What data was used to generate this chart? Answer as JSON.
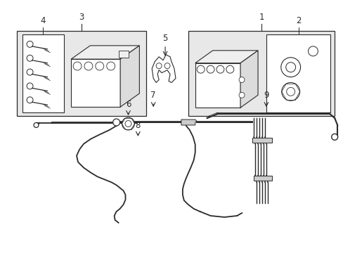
{
  "bg_color": "#ffffff",
  "box_fill": "#e8e8e8",
  "lc": "#2a2a2a",
  "fig_width": 4.89,
  "fig_height": 3.6,
  "dpi": 100,
  "xlim": [
    0,
    489
  ],
  "ylim": [
    0,
    360
  ]
}
